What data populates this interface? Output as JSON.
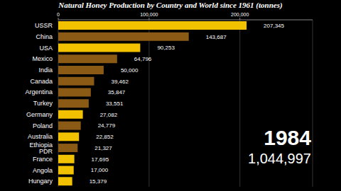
{
  "chart_data": {
    "type": "bar",
    "orientation": "horizontal",
    "title": "Natural Honey Production by Country and World since 1961 (tonnes)",
    "categories": [
      "USSR",
      "China",
      "USA",
      "Mexico",
      "India",
      "Canada",
      "Argentina",
      "Turkey",
      "Germany",
      "Poland",
      "Australia",
      "Ethiopia PDR",
      "France",
      "Angola",
      "Hungary"
    ],
    "values": [
      207345,
      143687,
      90253,
      64796,
      50000,
      39462,
      35847,
      33551,
      27082,
      24779,
      22852,
      21327,
      17695,
      17000,
      15379
    ],
    "value_labels": [
      "207,345",
      "143,687",
      "90,253",
      "64,796",
      "50,000",
      "39,462",
      "35,847",
      "33,551",
      "27,082",
      "24,779",
      "22,852",
      "21,327",
      "17,695",
      "17,000",
      "15,379"
    ],
    "colors": [
      "#f2c200",
      "#8b5a14",
      "#f2c200",
      "#8b5a14",
      "#8b5a14",
      "#8b5a14",
      "#8b5a14",
      "#8b5a14",
      "#f2c200",
      "#8b5a14",
      "#f2c200",
      "#8b5a14",
      "#f2c200",
      "#f2c200",
      "#f2c200"
    ],
    "xlim": [
      0,
      280000
    ],
    "xticks": [
      0,
      {
        "value": 100000,
        "label": "100,000"
      },
      {
        "value": 200000,
        "label": "200,000"
      }
    ],
    "data_labels": true,
    "grid": true,
    "annotations": [
      "1984",
      "1,044,997"
    ]
  }
}
